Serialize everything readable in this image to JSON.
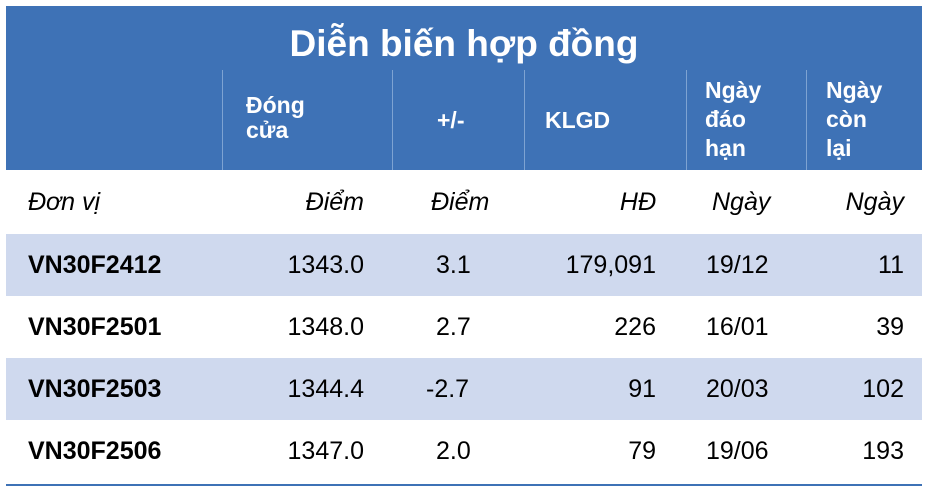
{
  "title": "Diễn biến hợp đồng",
  "headers": {
    "close_1": "Đóng",
    "close_2": "cửa",
    "change": "+/-",
    "volume": "KLGD",
    "expiry_1": "Ngày",
    "expiry_2": "đáo",
    "expiry_3": "hạn",
    "remaining_1": "Ngày",
    "remaining_2": "còn",
    "remaining_3": "lại"
  },
  "units": [
    "Đơn vị",
    "Điểm",
    "Điểm",
    "HĐ",
    "Ngày",
    "Ngày"
  ],
  "rows": [
    [
      "VN30F2412",
      "1343.0",
      "3.1",
      "179,091",
      "19/12",
      "11"
    ],
    [
      "VN30F2501",
      "1348.0",
      "2.7",
      "226",
      "16/01",
      "39"
    ],
    [
      "VN30F2503",
      "1344.4",
      "-2.7",
      "91",
      "20/03",
      "102"
    ],
    [
      "VN30F2506",
      "1347.0",
      "2.0",
      "79",
      "19/06",
      "193"
    ]
  ],
  "colors": {
    "header_bg": "#3e72b6",
    "alt_row_bg": "#cfd9ee",
    "divider": "#7ea3d2"
  }
}
